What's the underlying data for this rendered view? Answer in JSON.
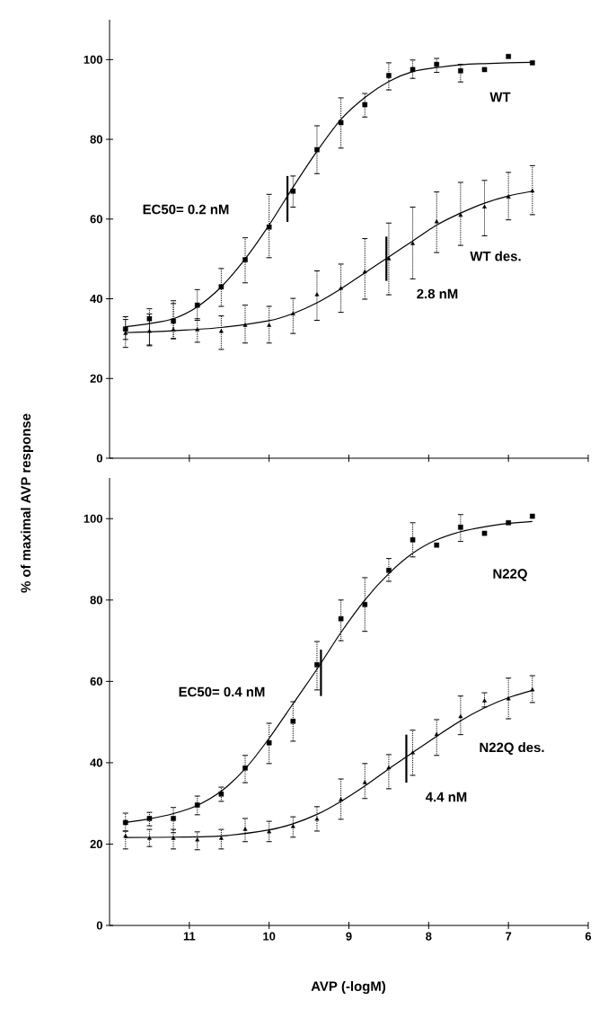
{
  "chart_data": [
    {
      "type": "scatter",
      "xlim": [
        12,
        6
      ],
      "ylim": [
        0,
        110
      ],
      "xticks": [
        11,
        10,
        9,
        8,
        7,
        6
      ],
      "yticks": [
        0,
        20,
        40,
        60,
        80,
        100
      ],
      "tick_labels": "y",
      "x": [
        11.8,
        11.5,
        11.2,
        10.9,
        10.6,
        10.3,
        10.0,
        9.7,
        9.4,
        9.1,
        8.8,
        8.5,
        8.2,
        7.9,
        7.6,
        7.3,
        7.0,
        6.7
      ],
      "annotations": [
        "WT",
        "WT des.",
        "EC50= 0.2 nM",
        "2.8 nM"
      ],
      "series": [
        {
          "marker": "square",
          "color": "#000000",
          "values": [
            32.4,
            35,
            34.4,
            38.4,
            43,
            49.8,
            58,
            67,
            77.4,
            84.2,
            88.7,
            96,
            97.5,
            98.8,
            97.2,
            97.5,
            100.8,
            99.2
          ],
          "errors": [
            [
              29.8,
              35.5
            ],
            [
              28.4,
              37.5
            ],
            [
              30,
              39.5
            ],
            [
              34.6,
              42.3
            ],
            [
              38.1,
              47.6
            ],
            [
              44,
              55.3
            ],
            [
              50.3,
              66.2
            ],
            [
              63,
              70.8
            ],
            [
              71.4,
              83.4
            ],
            [
              77.8,
              90.4
            ],
            [
              85.6,
              91.5
            ],
            [
              92.4,
              99.2
            ],
            [
              95.3,
              99.9
            ],
            [
              96.8,
              100.3
            ],
            [
              94.4,
              98.8
            ],
            null,
            null,
            null
          ]
        },
        {
          "marker": "triangle",
          "color": "#000000",
          "values": [
            31.3,
            31.8,
            32.2,
            32.2,
            31.8,
            33.3,
            33.3,
            36.2,
            41,
            42.6,
            46.7,
            50,
            53.8,
            59.3,
            60.9,
            63,
            65.5,
            67
          ],
          "errors": [
            [
              27.8,
              34.8
            ],
            [
              28.2,
              36.2
            ],
            [
              30,
              38.8
            ],
            [
              29.1,
              35
            ],
            [
              27.3,
              35.7
            ],
            [
              28.9,
              38.4
            ],
            [
              28.9,
              38.1
            ],
            [
              31.3,
              40.1
            ],
            [
              34.6,
              47
            ],
            [
              36.6,
              48.7
            ],
            [
              39.9,
              55.1
            ],
            [
              41,
              59
            ],
            [
              45,
              63
            ],
            [
              51.6,
              66.8
            ],
            [
              53.4,
              69.2
            ],
            [
              55.8,
              69.7
            ],
            [
              59.8,
              71.7
            ],
            [
              61.1,
              73.4
            ]
          ]
        },
        {
          "type": "line",
          "marker": "none",
          "color": "#000000",
          "x": [
            11.8,
            11.5,
            11.2,
            10.9,
            10.6,
            10.3,
            10.0,
            9.7,
            9.4,
            9.1,
            8.8,
            8.5,
            8.2,
            7.9,
            7.6,
            7.3,
            7.0,
            6.7
          ],
          "values": [
            33,
            33.8,
            35,
            38,
            43,
            50,
            58.5,
            68,
            77,
            85,
            90.5,
            94.5,
            97,
            98,
            98.7,
            99,
            99.2,
            99.3
          ]
        },
        {
          "type": "line",
          "marker": "none",
          "color": "#000000",
          "x": [
            11.8,
            11.2,
            10.6,
            10.0,
            9.7,
            9.4,
            9.1,
            8.8,
            8.5,
            8.2,
            7.9,
            7.6,
            7.3,
            7.0,
            6.7
          ],
          "values": [
            31.5,
            32,
            32.8,
            34.5,
            36.3,
            39,
            42.5,
            46.5,
            50.5,
            54.5,
            58.5,
            61.5,
            64,
            65.8,
            67
          ]
        },
        {
          "type": "line",
          "marker": "none",
          "color": "#000000",
          "x": [
            9.77,
            9.77
          ],
          "values": [
            59.3,
            70.8
          ]
        },
        {
          "type": "line",
          "marker": "none",
          "color": "#000000",
          "x": [
            8.53,
            8.53
          ],
          "values": [
            44.5,
            55.6
          ]
        }
      ]
    },
    {
      "type": "scatter",
      "ylabel": "% of maximal AVP response",
      "xlabel": "AVP (-logM)",
      "xlim": [
        12,
        6
      ],
      "ylim": [
        0,
        110
      ],
      "xticks": [
        11,
        10,
        9,
        8,
        7,
        6
      ],
      "yticks": [
        0,
        20,
        40,
        60,
        80,
        100
      ],
      "x": [
        11.8,
        11.5,
        11.2,
        10.9,
        10.6,
        10.3,
        10.0,
        9.7,
        9.4,
        9.1,
        8.8,
        8.5,
        8.2,
        7.9,
        7.6,
        7.3,
        7.0,
        6.7
      ],
      "annotations": [
        "N22Q",
        "N22Q des.",
        "EC50= 0.4 nM",
        "4.4 nM"
      ],
      "series": [
        {
          "marker": "square",
          "color": "#000000",
          "values": [
            25.3,
            26.3,
            26.3,
            29.6,
            32.3,
            38.7,
            44.9,
            50.2,
            64.1,
            75.4,
            78.9,
            87.3,
            94.8,
            93.5,
            97.9,
            96.4,
            99,
            100.6
          ],
          "errors": [
            [
              23.2,
              27.6
            ],
            [
              24.5,
              27.8
            ],
            [
              22.8,
              29
            ],
            [
              27.2,
              31.8
            ],
            [
              30.5,
              34
            ],
            [
              35.1,
              41.8
            ],
            [
              39.8,
              49.7
            ],
            [
              45.3,
              55
            ],
            [
              57.9,
              69.8
            ],
            [
              70,
              80
            ],
            [
              72.3,
              85.5
            ],
            [
              84.6,
              90.2
            ],
            [
              90.6,
              99
            ],
            null,
            [
              94.4,
              101
            ],
            null,
            null,
            null
          ]
        },
        {
          "marker": "triangle",
          "color": "#000000",
          "values": [
            21.9,
            21.4,
            21.4,
            21,
            21.4,
            23.6,
            23,
            24.3,
            26.1,
            30.9,
            35.1,
            38.7,
            42.4,
            46.9,
            51.3,
            55.2,
            55.7,
            57.9
          ],
          "errors": [
            [
              18.8,
              23.2
            ],
            [
              19.4,
              23.6
            ],
            [
              18.8,
              23.6
            ],
            [
              18.6,
              23
            ],
            [
              18.8,
              23.6
            ],
            [
              20.6,
              26.3
            ],
            [
              20.6,
              25.6
            ],
            [
              21.7,
              26.7
            ],
            [
              23.2,
              29.2
            ],
            [
              26.1,
              36
            ],
            [
              31.2,
              39.8
            ],
            [
              33.6,
              42
            ],
            [
              36.9,
              48
            ],
            [
              41.8,
              50.6
            ],
            [
              46.9,
              56.4
            ],
            [
              53.7,
              57.2
            ],
            [
              50.8,
              60.8
            ],
            [
              54.8,
              61.4
            ]
          ]
        },
        {
          "type": "line",
          "marker": "none",
          "color": "#000000",
          "x": [
            11.8,
            11.5,
            11.2,
            10.9,
            10.6,
            10.3,
            10.0,
            9.7,
            9.4,
            9.1,
            8.8,
            8.5,
            8.2,
            7.9,
            7.6,
            7.3,
            7.0,
            6.7
          ],
          "values": [
            25.3,
            26.2,
            27.5,
            29.5,
            33,
            38.5,
            46,
            54.5,
            63,
            72,
            80,
            86.5,
            91.5,
            94.8,
            96.8,
            98,
            98.8,
            99.3
          ]
        },
        {
          "type": "line",
          "marker": "none",
          "color": "#000000",
          "x": [
            11.8,
            11.2,
            10.6,
            10.0,
            9.7,
            9.4,
            9.1,
            8.8,
            8.5,
            8.2,
            7.9,
            7.6,
            7.3,
            7.0,
            6.7
          ],
          "values": [
            21.6,
            21.7,
            22,
            23.5,
            25,
            27.3,
            30.5,
            34.3,
            38.5,
            42.5,
            46.5,
            50.3,
            53.5,
            56,
            57.8
          ]
        },
        {
          "type": "line",
          "marker": "none",
          "color": "#000000",
          "x": [
            9.35,
            9.35
          ],
          "values": [
            56.4,
            67.8
          ]
        },
        {
          "type": "line",
          "marker": "none",
          "color": "#000000",
          "x": [
            8.28,
            8.28
          ],
          "values": [
            35.1,
            46.9
          ]
        }
      ]
    }
  ]
}
